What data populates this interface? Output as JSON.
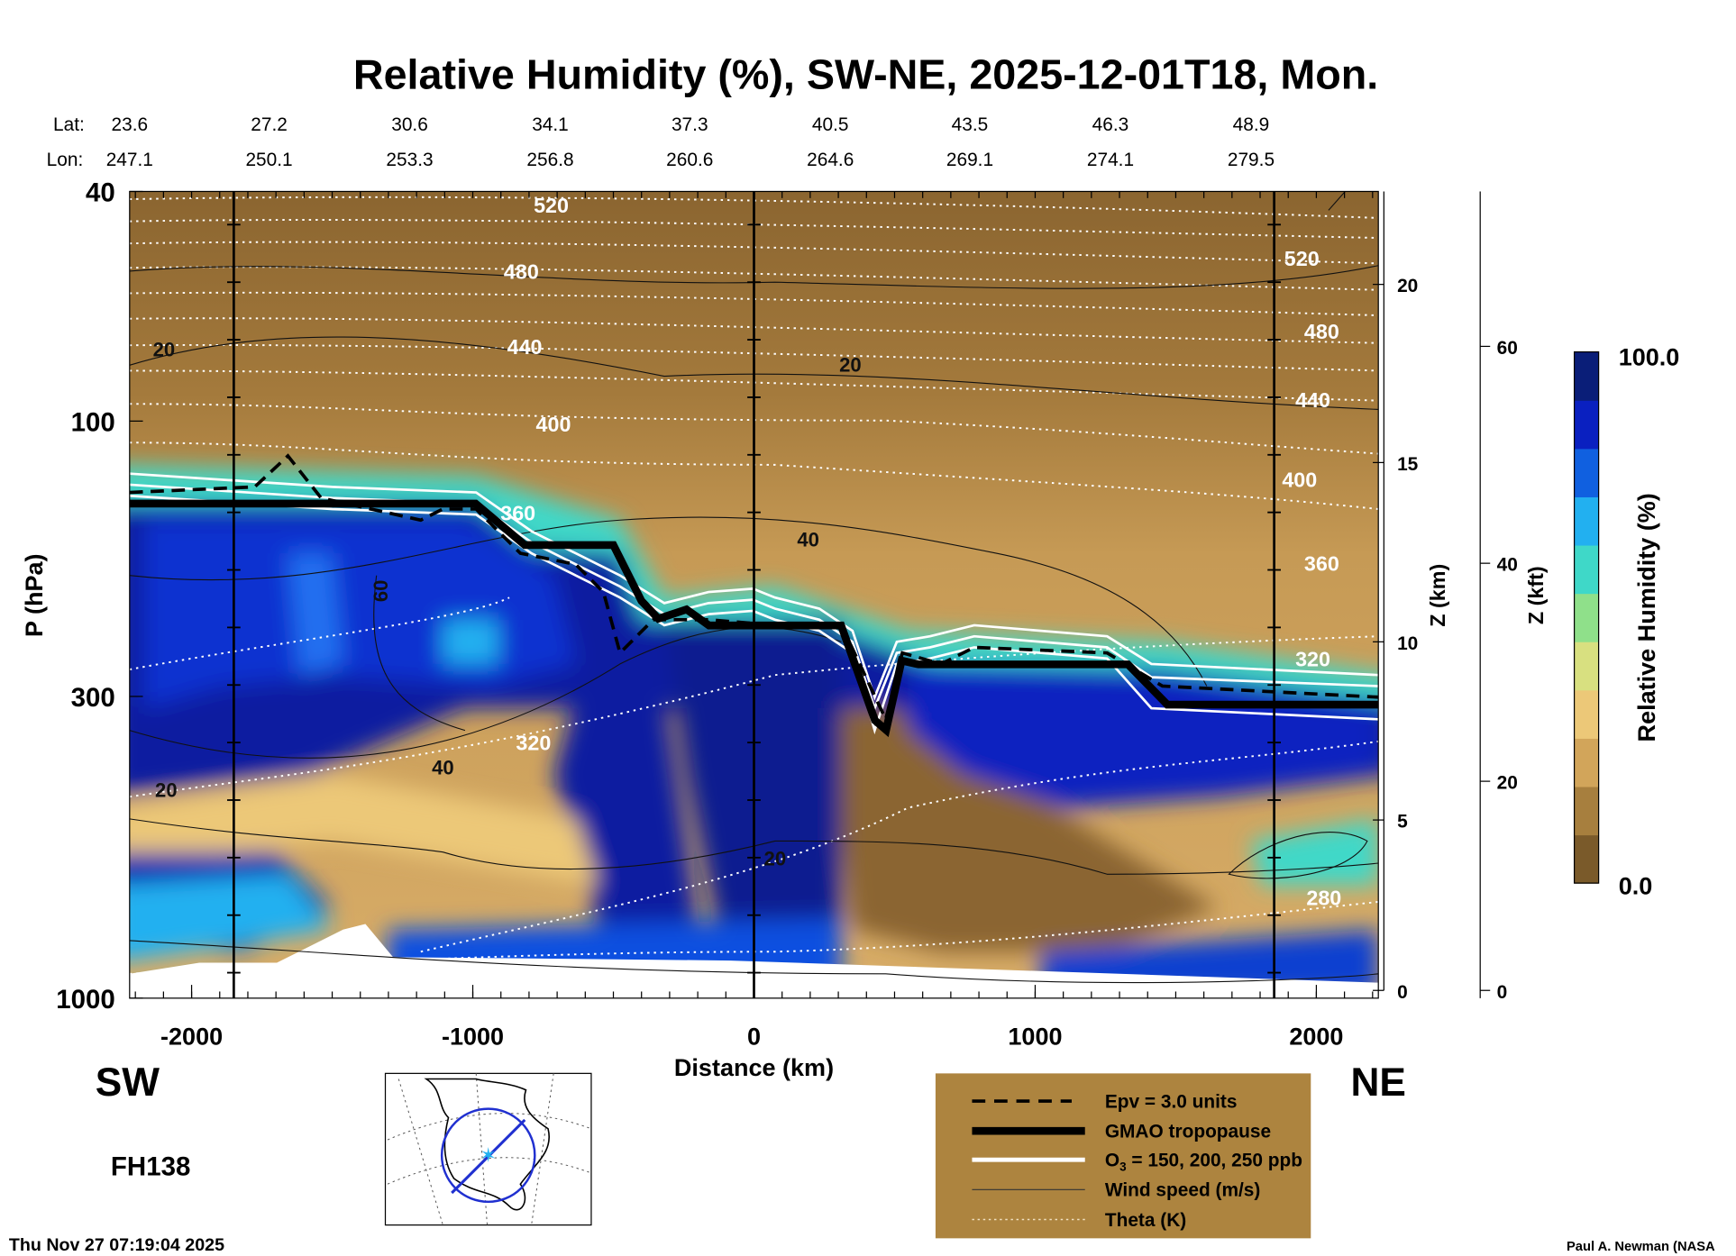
{
  "chart_data": {
    "type": "heatmap",
    "title": "Relative Humidity (%), SW-NE, 2025-12-01T18, Mon.",
    "xlabel": "Distance (km)",
    "ylabel": "P (hPa)",
    "y2label": "Z (km)",
    "y3label": "Z (kft)",
    "xlim": [
      -2220,
      2220
    ],
    "ylim": [
      1000,
      40
    ],
    "yscale": "log",
    "x_ticks": [
      "-2000",
      "-1000",
      "0",
      "1000",
      "2000"
    ],
    "x_tick_values": [
      -2000,
      -1000,
      0,
      1000,
      2000
    ],
    "y_ticks": [
      "40",
      "100",
      "300",
      "1000"
    ],
    "y_tick_values": [
      40,
      100,
      300,
      1000
    ],
    "zkm_ticks": [
      "0",
      "5",
      "10",
      "15",
      "20"
    ],
    "zkft_ticks": [
      "0",
      "20",
      "40",
      "60"
    ],
    "lat_label": "Lat:",
    "lon_label": "Lon:",
    "lats": [
      "23.6",
      "27.2",
      "30.6",
      "34.1",
      "37.3",
      "40.5",
      "43.5",
      "46.3",
      "48.9"
    ],
    "lons": [
      "247.1",
      "250.1",
      "253.3",
      "256.8",
      "260.6",
      "264.6",
      "269.1",
      "274.1",
      "279.5"
    ],
    "colorbar": {
      "label": "Relative Humidity (%)",
      "min": "0.0",
      "max": "100.0",
      "colors": [
        "#7a5a2a",
        "#a77f3e",
        "#d2a55a",
        "#ecc878",
        "#d8e080",
        "#8fe08a",
        "#3fd8c8",
        "#22b0f0",
        "#1060e0",
        "#0a20c0",
        "#0a1e78"
      ]
    },
    "tropopause": {
      "distance_km": [
        -2220,
        -990,
        -815,
        -500,
        -400,
        -340,
        -240,
        -160,
        310,
        430,
        470,
        525,
        585,
        1330,
        1470,
        2220
      ],
      "pressure_hPa": [
        139,
        139,
        164,
        164,
        205,
        220,
        212,
        226,
        226,
        330,
        343,
        260,
        264,
        264,
        310,
        310
      ]
    },
    "theta_labels_K": [
      "520",
      "480",
      "440",
      "400",
      "360",
      "320",
      "280"
    ],
    "theta_inline_labels": [
      "520",
      "480",
      "440",
      "400",
      "360",
      "320"
    ],
    "wind_labels_ms": [
      "20",
      "20",
      "40",
      "60",
      "40",
      "20",
      "20"
    ],
    "vertical_marks_km": [
      -1850,
      0,
      1850
    ],
    "side_labels": {
      "left": "SW",
      "right": "NE"
    },
    "forecast_hour": "FH138",
    "legend": [
      {
        "label": "Epv = 3.0 units",
        "style": "dashed"
      },
      {
        "label": "GMAO tropopause",
        "style": "thick"
      },
      {
        "label": "O",
        "sub": "3",
        "rest": " = 150, 200, 250 ppb",
        "style": "white"
      },
      {
        "label": "Wind speed (m/s)",
        "style": "thin"
      },
      {
        "label": "Theta (K)",
        "style": "dotted"
      }
    ],
    "legend_bg": "#ad843f"
  },
  "footer": {
    "timestamp": "Thu Nov 27 07:19:04 2025",
    "credit": "Paul A. Newman (NASA"
  }
}
